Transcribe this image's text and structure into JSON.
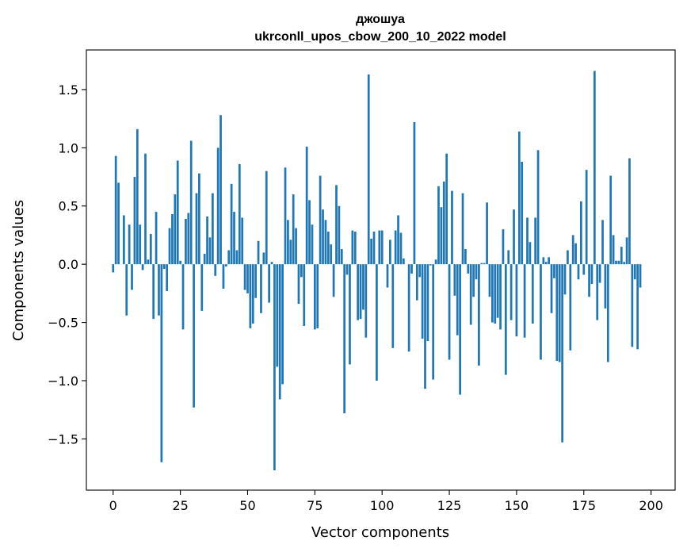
{
  "chart_data": {
    "type": "bar",
    "title_line1": "джошуа",
    "title_line2": "ukrconll_upos_cbow_200_10_2022 model",
    "xlabel": "Vector components",
    "ylabel": "Components values",
    "xlim": [
      -9.95,
      208.95
    ],
    "ylim": [
      -1.94,
      1.84
    ],
    "xticks": [
      0,
      25,
      50,
      75,
      100,
      125,
      150,
      175,
      200
    ],
    "xtick_labels": [
      "0",
      "25",
      "50",
      "75",
      "100",
      "125",
      "150",
      "175",
      "200"
    ],
    "yticks": [
      -1.5,
      -1.0,
      -0.5,
      0.0,
      0.5,
      1.0,
      1.5
    ],
    "ytick_labels": [
      "−1.5",
      "−1.0",
      "−0.5",
      "0.0",
      "0.5",
      "1.0",
      "1.5"
    ],
    "bar_color": "#1f77b4",
    "grid": false,
    "values": [
      -0.07,
      0.93,
      0.7,
      0.0,
      0.42,
      -0.44,
      0.34,
      -0.22,
      0.75,
      1.16,
      0.34,
      -0.05,
      0.95,
      0.04,
      0.26,
      -0.47,
      0.45,
      -0.44,
      -1.7,
      -0.04,
      -0.23,
      0.31,
      0.43,
      0.6,
      0.89,
      0.03,
      -0.56,
      0.39,
      0.44,
      1.06,
      -1.23,
      0.61,
      0.78,
      -0.4,
      0.09,
      0.41,
      0.23,
      0.61,
      -0.1,
      1.0,
      1.28,
      -0.21,
      -0.02,
      0.12,
      0.69,
      0.45,
      0.12,
      0.86,
      0.4,
      -0.22,
      -0.25,
      -0.55,
      -0.51,
      -0.29,
      0.2,
      -0.42,
      0.1,
      0.8,
      -0.33,
      0.02,
      -1.77,
      -0.88,
      -1.16,
      -1.03,
      0.83,
      0.38,
      0.21,
      0.6,
      0.31,
      -0.34,
      -0.11,
      -0.53,
      1.01,
      0.55,
      0.34,
      -0.56,
      -0.55,
      0.76,
      0.47,
      0.38,
      0.28,
      0.17,
      -0.28,
      0.68,
      0.5,
      0.13,
      -1.28,
      -0.09,
      -0.86,
      0.29,
      0.28,
      -0.48,
      -0.47,
      -0.39,
      -0.63,
      1.63,
      0.22,
      0.28,
      -1.0,
      0.29,
      0.29,
      0.0,
      -0.2,
      0.21,
      -0.72,
      0.29,
      0.42,
      0.27,
      0.05,
      0.0,
      -0.75,
      -0.08,
      1.22,
      -0.31,
      -0.11,
      -0.64,
      -1.07,
      -0.66,
      -0.01,
      -0.99,
      0.04,
      0.67,
      0.49,
      0.71,
      0.95,
      -0.82,
      0.63,
      -0.27,
      -0.61,
      -1.12,
      0.61,
      0.13,
      -0.08,
      -0.52,
      -0.28,
      -0.13,
      -0.87,
      0.01,
      0.01,
      0.53,
      -0.28,
      -0.5,
      -0.51,
      -0.46,
      -0.56,
      0.3,
      -0.95,
      0.12,
      -0.48,
      0.47,
      -0.62,
      1.14,
      0.88,
      -0.63,
      0.4,
      0.19,
      -0.51,
      0.4,
      0.98,
      -0.82,
      0.06,
      0.02,
      0.06,
      -0.42,
      -0.12,
      -0.83,
      -0.84,
      -1.53,
      -0.26,
      0.12,
      -0.74,
      0.25,
      0.18,
      -0.13,
      0.54,
      -0.09,
      0.81,
      -0.28,
      -0.17,
      1.66,
      -0.48,
      -0.16,
      0.38,
      -0.38,
      -0.84,
      0.76,
      0.25,
      0.03,
      0.03,
      0.15,
      0.02,
      0.23,
      0.91,
      -0.71,
      -0.13,
      -0.73,
      -0.2
    ]
  }
}
